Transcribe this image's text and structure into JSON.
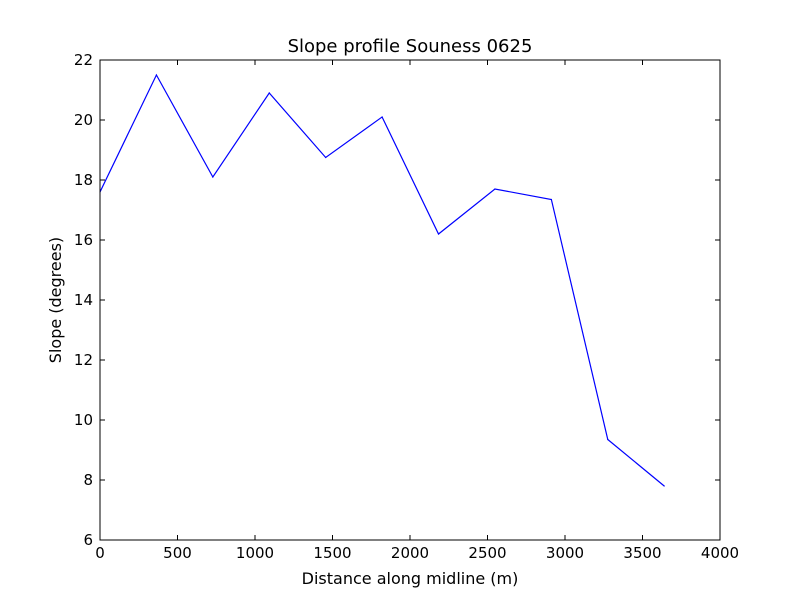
{
  "chart_data": {
    "type": "line",
    "title": "Slope profile Souness 0625",
    "xlabel": "Distance along midline (m)",
    "ylabel": "Slope (degrees)",
    "xlim": [
      0,
      4000
    ],
    "ylim": [
      6,
      22
    ],
    "xticks": [
      0,
      500,
      1000,
      1500,
      2000,
      2500,
      3000,
      3500,
      4000
    ],
    "yticks": [
      6,
      8,
      10,
      12,
      14,
      16,
      18,
      20,
      22
    ],
    "grid": false,
    "series": [
      {
        "color": "#0000ff",
        "x": [
          0,
          364,
          728,
          1092,
          1456,
          1820,
          2184,
          2548,
          2912,
          3276,
          3640
        ],
        "y": [
          17.6,
          21.5,
          18.1,
          20.9,
          18.75,
          20.1,
          16.2,
          17.7,
          17.35,
          9.35,
          7.8
        ]
      }
    ]
  }
}
